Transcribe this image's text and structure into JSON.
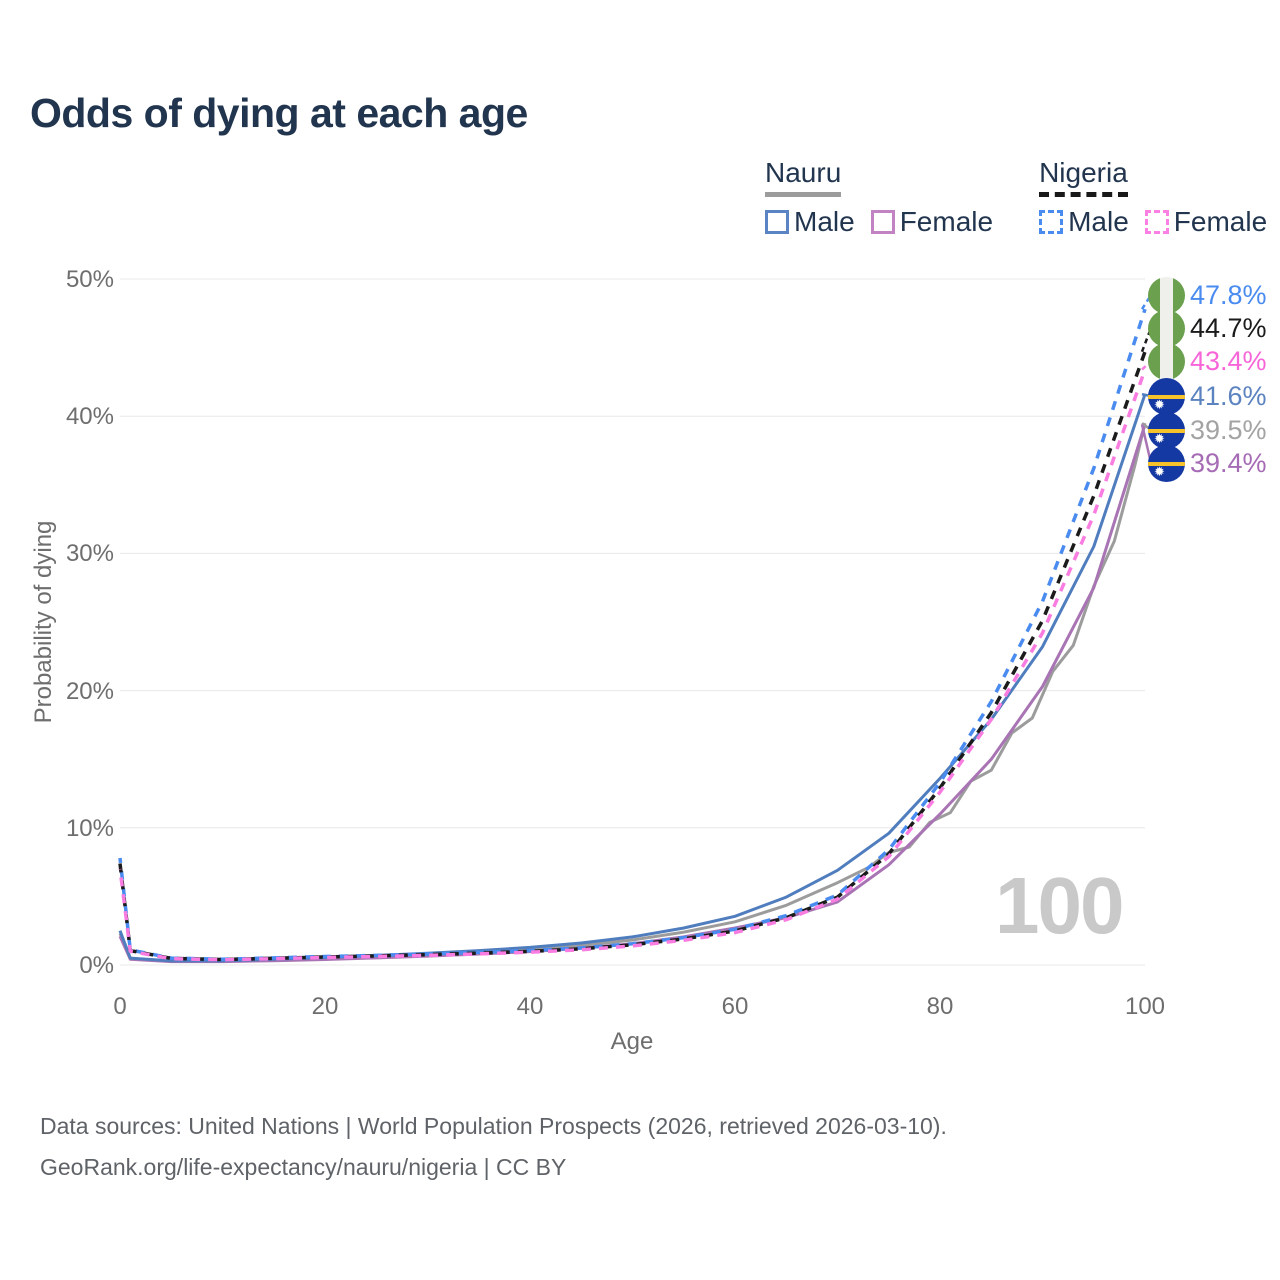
{
  "title": "Odds of dying at each age",
  "watermark": "100",
  "legend": {
    "groups": [
      {
        "name": "Nauru",
        "line_style": "solid",
        "underline_color": "#9c9c9c",
        "items": [
          {
            "label": "Male",
            "color": "#5b84c4"
          },
          {
            "label": "Female",
            "color": "#c183c1"
          }
        ]
      },
      {
        "name": "Nigeria",
        "line_style": "dashed",
        "underline_color": "#191919",
        "items": [
          {
            "label": "Male",
            "color": "#4a8bf0"
          },
          {
            "label": "Female",
            "color": "#fb80e3"
          }
        ]
      }
    ]
  },
  "footer": {
    "line1": "Data sources: United Nations | World Population Prospects (2026, retrieved 2026-03-10).",
    "line2": "GeoRank.org/life-expectancy/nauru/nigeria | CC BY"
  },
  "chart_data": {
    "type": "line",
    "title": "Odds of dying at each age",
    "xlabel": "Age",
    "ylabel": "Probability of dying",
    "xlim": [
      0,
      100
    ],
    "ylim_percent": [
      0,
      50
    ],
    "x_ticks": [
      0,
      20,
      40,
      60,
      80,
      100
    ],
    "y_ticks_percent": [
      0,
      10,
      20,
      30,
      40,
      50
    ],
    "grid": "horizontal-only",
    "legend_position": "top-right",
    "hovered_age": "100",
    "series": [
      {
        "id": "nauru-both",
        "name": "Nauru — Both sexes",
        "country": "Nauru",
        "sex": "Both",
        "color": "#9c9c9c",
        "dashed": false,
        "label_color": "#a3a3a3",
        "flag": "nauru",
        "end_label": "39.5%",
        "ages": [
          0,
          1,
          5,
          10,
          15,
          20,
          25,
          30,
          35,
          40,
          45,
          50,
          55,
          60,
          65,
          70,
          73,
          75,
          77,
          79,
          81,
          83,
          85,
          87,
          89,
          91,
          93,
          95,
          97,
          99,
          100
        ],
        "values": [
          2.3,
          0.46,
          0.28,
          0.28,
          0.37,
          0.48,
          0.61,
          0.76,
          0.93,
          1.13,
          1.42,
          1.82,
          2.4,
          3.15,
          4.35,
          6.0,
          7.1,
          8.2,
          8.6,
          10.4,
          11.1,
          13.4,
          14.2,
          16.9,
          18.0,
          21.4,
          23.3,
          27.6,
          30.9,
          36.4,
          39.5
        ]
      },
      {
        "id": "nauru-female",
        "name": "Nauru — Female",
        "country": "Nauru",
        "sex": "Female",
        "color": "#a974b4",
        "dashed": false,
        "label_color": "#a66bb5",
        "flag": "nauru",
        "end_label": "39.4%",
        "ages": [
          0,
          1,
          5,
          10,
          15,
          20,
          25,
          30,
          35,
          40,
          45,
          50,
          55,
          60,
          65,
          70,
          75,
          80,
          85,
          90,
          95,
          100
        ],
        "values": [
          2.1,
          0.42,
          0.25,
          0.25,
          0.31,
          0.4,
          0.52,
          0.65,
          0.8,
          0.98,
          1.22,
          1.55,
          2.05,
          2.7,
          3.45,
          4.6,
          7.3,
          11.0,
          15.0,
          20.3,
          27.5,
          39.4
        ]
      },
      {
        "id": "nauru-male",
        "name": "Nauru — Male",
        "country": "Nauru",
        "sex": "Male",
        "color": "#4f7dbd",
        "dashed": false,
        "label_color": "#5b83c0",
        "flag": "nauru",
        "end_label": "41.6%",
        "ages": [
          0,
          1,
          5,
          10,
          15,
          20,
          25,
          30,
          35,
          40,
          45,
          50,
          55,
          60,
          65,
          70,
          75,
          80,
          85,
          90,
          95,
          100
        ],
        "values": [
          2.5,
          0.5,
          0.3,
          0.3,
          0.42,
          0.55,
          0.7,
          0.86,
          1.05,
          1.28,
          1.6,
          2.05,
          2.7,
          3.55,
          4.95,
          6.9,
          9.6,
          13.6,
          17.9,
          23.2,
          30.5,
          41.6
        ]
      },
      {
        "id": "nigeria-male",
        "name": "Nigeria — Male",
        "country": "Nigeria",
        "sex": "Male",
        "color": "#4a8bf0",
        "dashed": true,
        "label_color": "#4a8bf0",
        "flag": "nigeria",
        "end_label": "47.8%",
        "ages": [
          0,
          1,
          5,
          10,
          15,
          20,
          25,
          30,
          35,
          40,
          45,
          50,
          55,
          60,
          65,
          70,
          75,
          80,
          85,
          90,
          95,
          100
        ],
        "values": [
          7.8,
          1.1,
          0.5,
          0.42,
          0.52,
          0.62,
          0.7,
          0.8,
          0.92,
          1.05,
          1.25,
          1.55,
          2.0,
          2.6,
          3.6,
          5.1,
          8.4,
          13.3,
          19.2,
          26.5,
          36.2,
          47.8
        ]
      },
      {
        "id": "nigeria-both",
        "name": "Nigeria — Both sexes",
        "country": "Nigeria",
        "sex": "Both",
        "color": "#1b1b1b",
        "dashed": true,
        "label_color": "#1b1b1b",
        "flag": "nigeria",
        "end_label": "44.7%",
        "ages": [
          0,
          1,
          5,
          10,
          15,
          20,
          25,
          30,
          35,
          40,
          45,
          50,
          55,
          60,
          65,
          70,
          75,
          80,
          85,
          90,
          95,
          100
        ],
        "values": [
          7.4,
          1.05,
          0.48,
          0.4,
          0.49,
          0.58,
          0.66,
          0.75,
          0.86,
          0.99,
          1.18,
          1.47,
          1.9,
          2.48,
          3.45,
          4.95,
          8.1,
          12.9,
          18.4,
          25.1,
          34.2,
          44.7
        ]
      },
      {
        "id": "nigeria-female",
        "name": "Nigeria — Female",
        "country": "Nigeria",
        "sex": "Female",
        "color": "#f97ce1",
        "dashed": true,
        "label_color": "#f766d8",
        "flag": "nigeria",
        "end_label": "43.4%",
        "ages": [
          0,
          1,
          5,
          10,
          15,
          20,
          25,
          30,
          35,
          40,
          45,
          50,
          55,
          60,
          65,
          70,
          75,
          80,
          85,
          90,
          95,
          100
        ],
        "values": [
          7.0,
          1.0,
          0.46,
          0.38,
          0.46,
          0.55,
          0.62,
          0.7,
          0.81,
          0.93,
          1.11,
          1.39,
          1.8,
          2.36,
          3.3,
          4.8,
          7.9,
          12.6,
          17.9,
          24.2,
          32.8,
          43.4
        ]
      }
    ]
  }
}
